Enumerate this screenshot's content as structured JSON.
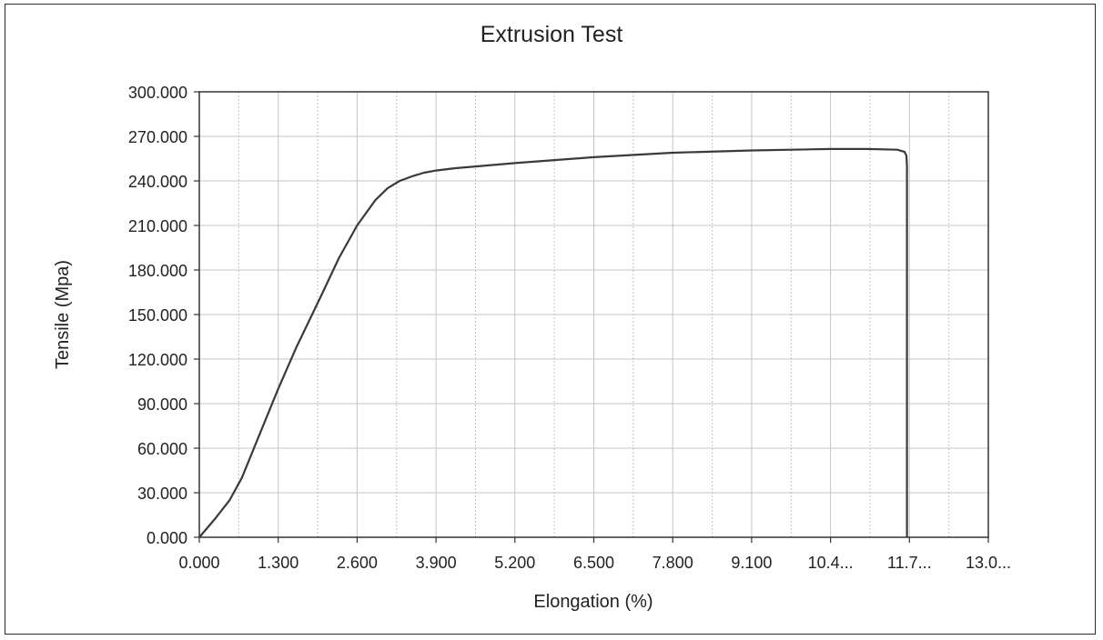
{
  "chart_data": {
    "type": "line",
    "title": "Extrusion Test",
    "xlabel": "Elongation (%)",
    "ylabel": "Tensile (Mpa)",
    "xlim": [
      0,
      13
    ],
    "ylim": [
      0,
      300
    ],
    "x_ticks": [
      0,
      1.3,
      2.6,
      3.9,
      5.2,
      6.5,
      7.8,
      9.1,
      10.4,
      11.7,
      13.0
    ],
    "x_tick_labels": [
      "0.000",
      "1.300",
      "2.600",
      "3.900",
      "5.200",
      "6.500",
      "7.800",
      "9.100",
      "10.4...",
      "11.7...",
      "13.0..."
    ],
    "y_ticks": [
      0,
      30,
      60,
      90,
      120,
      150,
      180,
      210,
      240,
      270,
      300
    ],
    "y_tick_labels": [
      "0.000",
      "30.000",
      "60.000",
      "90.000",
      "120.000",
      "150.000",
      "180.000",
      "210.000",
      "240.000",
      "270.000",
      "300.000"
    ],
    "grid": true,
    "minor_grid": true,
    "legend": false,
    "series_color": "#3a3a3a",
    "series": [
      {
        "x": [
          0.0,
          0.25,
          0.5,
          0.7,
          1.0,
          1.3,
          1.6,
          2.0,
          2.3,
          2.6,
          2.9,
          3.1,
          3.3,
          3.5,
          3.7,
          3.9,
          4.2,
          5.2,
          6.5,
          7.8,
          9.1,
          10.4,
          11.0,
          11.5,
          11.62,
          11.65,
          11.66,
          11.66
        ],
        "y": [
          0,
          12,
          25,
          40,
          70,
          100,
          128,
          162,
          188,
          210,
          227,
          235,
          240,
          243,
          245.5,
          247,
          248.5,
          252,
          256,
          259,
          260.5,
          261.5,
          261.5,
          261,
          259.5,
          257,
          250,
          0
        ]
      }
    ]
  }
}
